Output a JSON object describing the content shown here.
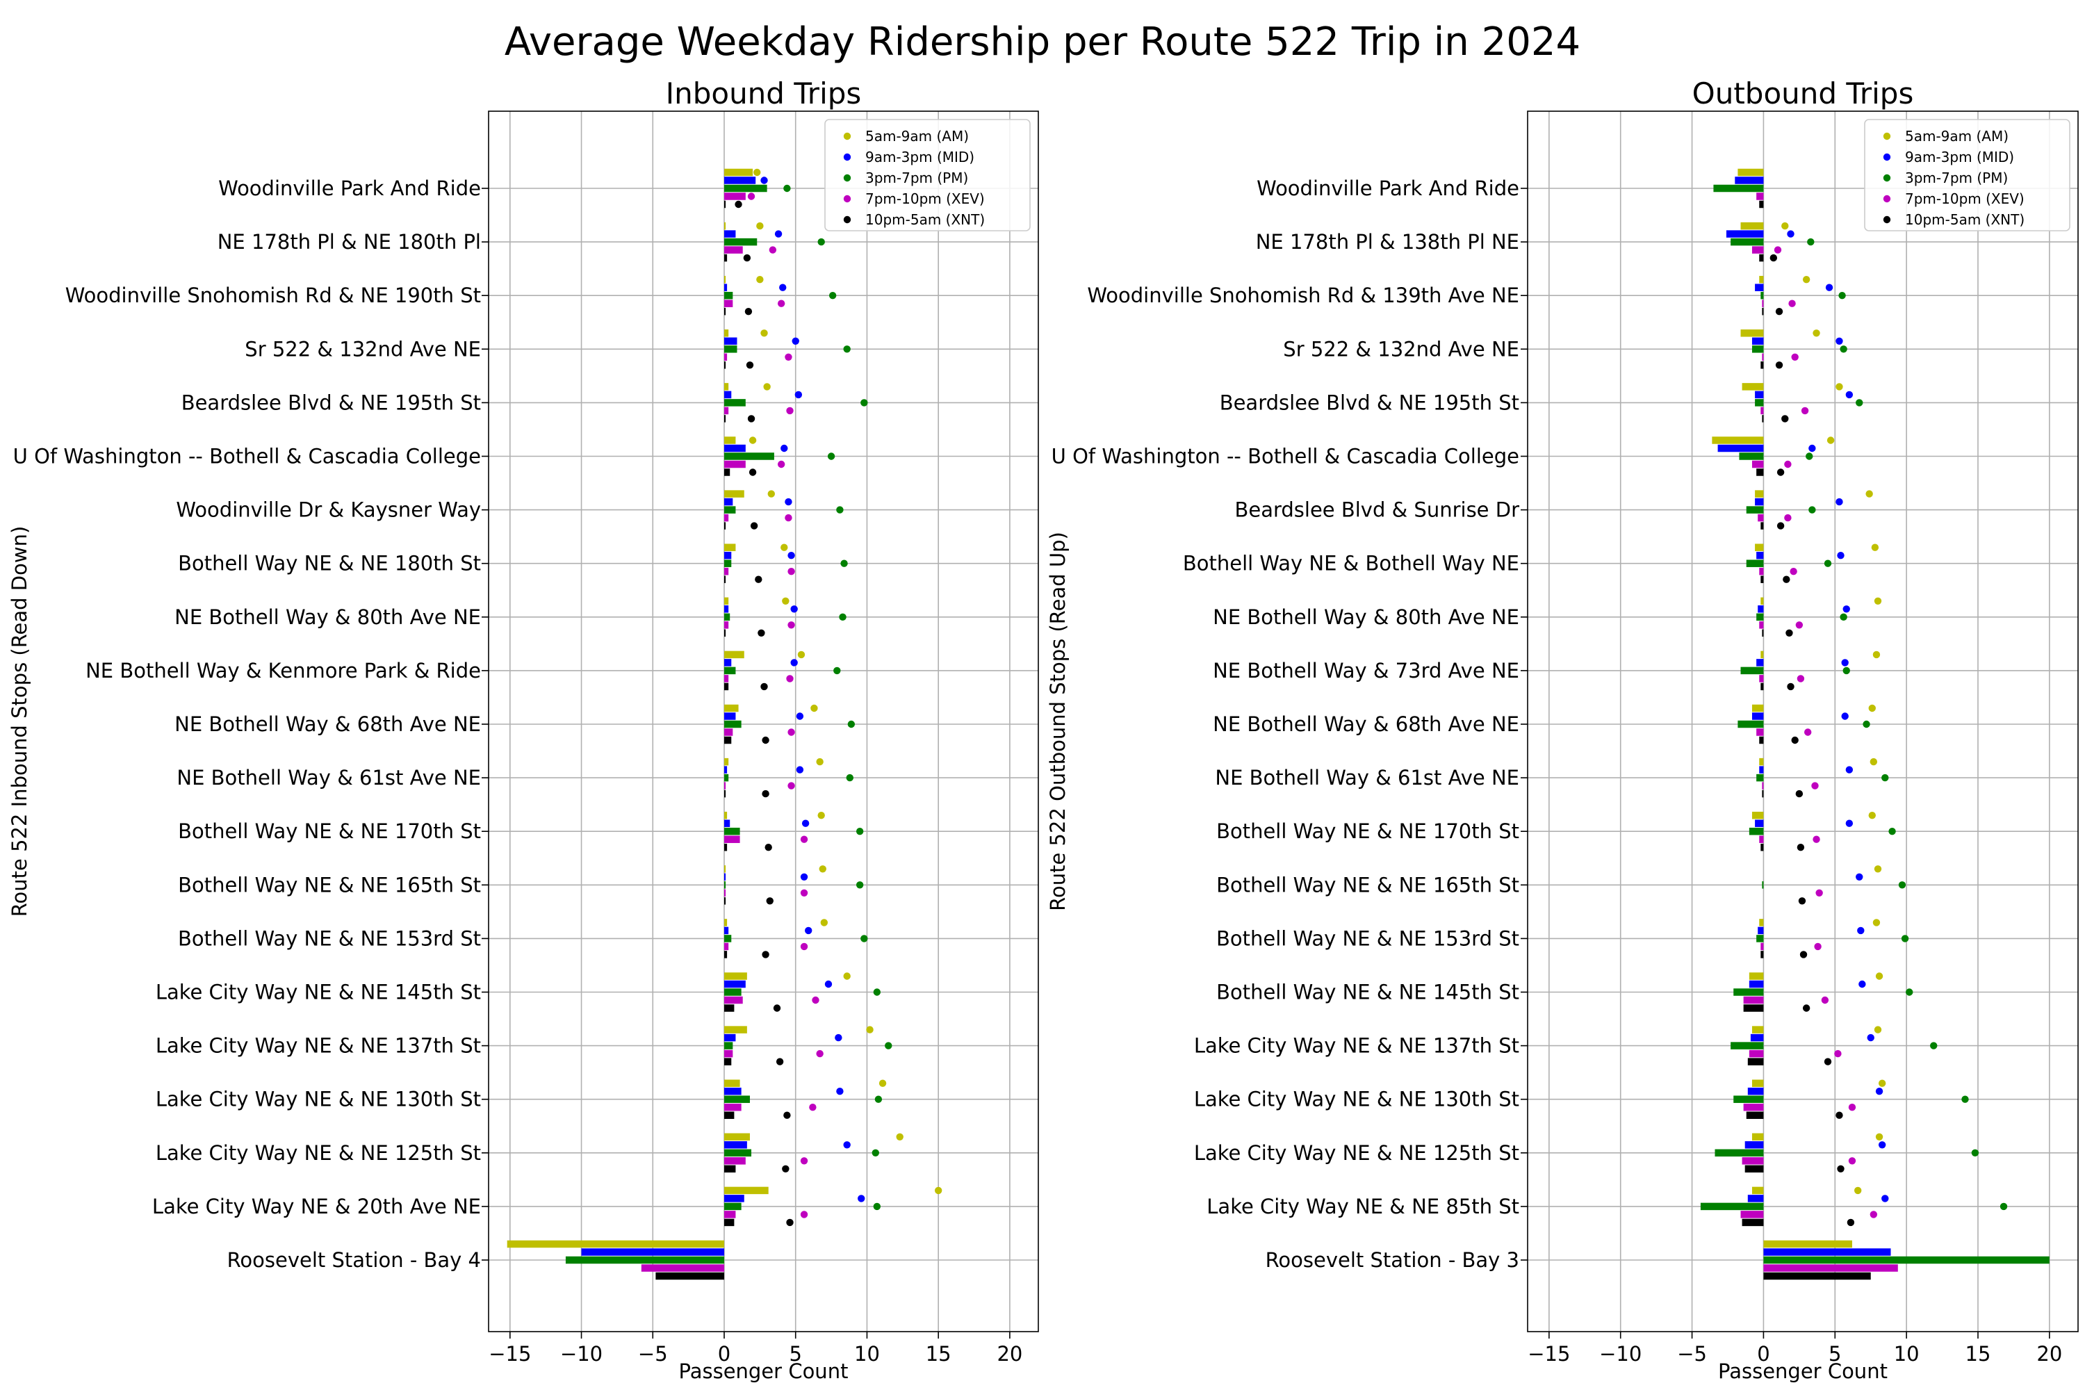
{
  "figure": {
    "title": "Average Weekday Ridership per Route 522 Trip in 2024"
  },
  "colors": {
    "AM": "#bfbf00",
    "MID": "#0000ff",
    "PM": "#008000",
    "XEV": "#bf00bf",
    "XNT": "#000000"
  },
  "chart_data": [
    {
      "type": "bar+scatter",
      "title": "Inbound Trips",
      "xlabel": "Passenger Count",
      "ylabel": "Route 522 Inbound Stops (Read Down)",
      "xlim": [
        -16.5,
        22
      ],
      "xticks": [
        -15,
        -10,
        -5,
        0,
        5,
        10,
        15,
        20
      ],
      "grid": true,
      "legend_position": "top-right",
      "series_names": [
        "5am-9am (AM)",
        "9am-3pm (MID)",
        "3pm-7pm (PM)",
        "7pm-10pm (XEV)",
        "10pm-5am (XNT)"
      ],
      "series_keys": [
        "AM",
        "MID",
        "PM",
        "XEV",
        "XNT"
      ],
      "stops": [
        {
          "name": "Woodinville Park And Ride",
          "bars": [
            2.0,
            2.2,
            3.0,
            1.5,
            0.1
          ],
          "points": [
            2.3,
            2.8,
            4.4,
            1.9,
            1.0
          ]
        },
        {
          "name": "NE 178th Pl & NE 180th Pl",
          "bars": [
            0.1,
            0.8,
            2.3,
            1.3,
            0.2
          ],
          "points": [
            2.5,
            3.8,
            6.8,
            3.4,
            1.6
          ]
        },
        {
          "name": "Woodinville Snohomish Rd & NE 190th St",
          "bars": [
            0.1,
            0.2,
            0.6,
            0.6,
            0.1
          ],
          "points": [
            2.5,
            4.1,
            7.6,
            4.0,
            1.7
          ]
        },
        {
          "name": "Sr 522 & 132nd Ave NE",
          "bars": [
            0.3,
            0.9,
            0.9,
            0.2,
            0.1
          ],
          "points": [
            2.8,
            5.0,
            8.6,
            4.5,
            1.8
          ]
        },
        {
          "name": "Beardslee Blvd & NE 195th St",
          "bars": [
            0.3,
            0.5,
            1.5,
            0.3,
            0.1
          ],
          "points": [
            3.0,
            5.2,
            9.8,
            4.6,
            1.9
          ]
        },
        {
          "name": "U Of Washington -- Bothell & Cascadia College",
          "bars": [
            0.8,
            1.5,
            3.5,
            1.5,
            0.4
          ],
          "points": [
            2.0,
            4.2,
            7.5,
            4.0,
            2.0
          ]
        },
        {
          "name": "Woodinville Dr & Kaysner Way",
          "bars": [
            1.4,
            0.6,
            0.8,
            0.3,
            0.1
          ],
          "points": [
            3.3,
            4.5,
            8.1,
            4.5,
            2.1
          ]
        },
        {
          "name": "Bothell Way NE & NE 180th St",
          "bars": [
            0.8,
            0.5,
            0.5,
            0.3,
            0.1
          ],
          "points": [
            4.2,
            4.7,
            8.4,
            4.7,
            2.4
          ]
        },
        {
          "name": "NE Bothell Way & 80th Ave NE",
          "bars": [
            0.3,
            0.3,
            0.4,
            0.3,
            0.1
          ],
          "points": [
            4.3,
            4.9,
            8.3,
            4.7,
            2.6
          ]
        },
        {
          "name": "NE Bothell Way & Kenmore Park & Ride",
          "bars": [
            1.4,
            0.5,
            0.8,
            0.3,
            0.3
          ],
          "points": [
            5.4,
            4.9,
            7.9,
            4.6,
            2.8
          ]
        },
        {
          "name": "NE Bothell Way & 68th Ave NE",
          "bars": [
            1.0,
            0.8,
            1.2,
            0.6,
            0.5
          ],
          "points": [
            6.3,
            5.3,
            8.9,
            4.7,
            2.9
          ]
        },
        {
          "name": "NE Bothell Way & 61st Ave NE",
          "bars": [
            0.3,
            0.2,
            0.3,
            0.1,
            0.1
          ],
          "points": [
            6.7,
            5.3,
            8.8,
            4.7,
            2.9
          ]
        },
        {
          "name": "Bothell Way NE & NE 170th St",
          "bars": [
            0.2,
            0.4,
            1.1,
            1.1,
            0.2
          ],
          "points": [
            6.8,
            5.7,
            9.5,
            5.6,
            3.1
          ]
        },
        {
          "name": "Bothell Way NE & NE 165th St",
          "bars": [
            0.1,
            0.1,
            0.1,
            0.1,
            0.1
          ],
          "points": [
            6.9,
            5.6,
            9.5,
            5.6,
            3.2
          ]
        },
        {
          "name": "Bothell Way NE & NE 153rd St",
          "bars": [
            0.2,
            0.3,
            0.5,
            0.3,
            0.2
          ],
          "points": [
            7.0,
            5.9,
            9.8,
            5.6,
            2.9
          ]
        },
        {
          "name": "Lake City Way NE & NE 145th St",
          "bars": [
            1.6,
            1.5,
            1.2,
            1.3,
            0.7
          ],
          "points": [
            8.6,
            7.3,
            10.7,
            6.4,
            3.7
          ]
        },
        {
          "name": "Lake City Way NE & NE 137th St",
          "bars": [
            1.6,
            0.8,
            0.6,
            0.6,
            0.5
          ],
          "points": [
            10.2,
            8.0,
            11.5,
            6.7,
            3.9
          ]
        },
        {
          "name": "Lake City Way NE & NE 130th St",
          "bars": [
            1.1,
            1.2,
            1.8,
            1.2,
            0.7
          ],
          "points": [
            11.1,
            8.1,
            10.8,
            6.2,
            4.4
          ]
        },
        {
          "name": "Lake City Way NE & NE 125th St",
          "bars": [
            1.8,
            1.6,
            1.9,
            1.5,
            0.8
          ],
          "points": [
            12.3,
            8.6,
            10.6,
            5.6,
            4.3
          ]
        },
        {
          "name": "Lake City Way NE & 20th Ave NE",
          "bars": [
            3.1,
            1.4,
            1.2,
            0.8,
            0.7
          ],
          "points": [
            15.0,
            9.6,
            10.7,
            5.6,
            4.6
          ]
        },
        {
          "name": "Roosevelt Station - Bay 4",
          "bars": [
            -15.2,
            -10.0,
            -11.1,
            -5.8,
            -4.8
          ],
          "points": [
            null,
            null,
            null,
            null,
            null
          ]
        }
      ]
    },
    {
      "type": "bar+scatter",
      "title": "Outbound Trips",
      "xlabel": "Passenger Count",
      "ylabel": "Route 522 Outbound Stops (Read Up)",
      "xlim": [
        -16.5,
        22
      ],
      "xticks": [
        -15,
        -10,
        -5,
        0,
        5,
        10,
        15,
        20
      ],
      "grid": true,
      "legend_position": "top-right",
      "series_names": [
        "5am-9am (AM)",
        "9am-3pm (MID)",
        "3pm-7pm (PM)",
        "7pm-10pm (XEV)",
        "10pm-5am (XNT)"
      ],
      "series_keys": [
        "AM",
        "MID",
        "PM",
        "XEV",
        "XNT"
      ],
      "stops": [
        {
          "name": "Woodinville Park And Ride",
          "bars": [
            -1.8,
            -2.0,
            -3.5,
            -0.5,
            -0.3
          ],
          "points": [
            null,
            null,
            null,
            null,
            null
          ]
        },
        {
          "name": "NE 178th Pl & 138th Pl NE",
          "bars": [
            -1.6,
            -2.6,
            -2.3,
            -0.8,
            -0.3
          ],
          "points": [
            1.5,
            1.9,
            3.3,
            1.0,
            0.7
          ]
        },
        {
          "name": "Woodinville Snohomish Rd & 139th Ave NE",
          "bars": [
            -0.3,
            -0.6,
            -0.2,
            -0.1,
            -0.1
          ],
          "points": [
            3.0,
            4.6,
            5.5,
            2.0,
            1.1
          ]
        },
        {
          "name": "Sr 522 & 132nd Ave NE",
          "bars": [
            -1.6,
            -0.8,
            -0.8,
            -0.1,
            -0.2
          ],
          "points": [
            3.7,
            5.3,
            5.6,
            2.2,
            1.1
          ]
        },
        {
          "name": "Beardslee Blvd & NE 195th St",
          "bars": [
            -1.5,
            -0.6,
            -0.6,
            -0.2,
            -0.1
          ],
          "points": [
            5.3,
            6.0,
            6.7,
            2.9,
            1.5
          ]
        },
        {
          "name": "U Of Washington -- Bothell & Cascadia College",
          "bars": [
            -3.6,
            -3.2,
            -1.7,
            -0.8,
            -0.5
          ],
          "points": [
            4.7,
            3.4,
            3.2,
            1.7,
            1.2
          ]
        },
        {
          "name": "Beardslee Blvd & Sunrise Dr",
          "bars": [
            -0.6,
            -0.6,
            -1.2,
            -0.4,
            -0.2
          ],
          "points": [
            7.4,
            5.3,
            3.4,
            1.7,
            1.2
          ]
        },
        {
          "name": "Bothell Way NE & Bothell Way NE",
          "bars": [
            -0.6,
            -0.5,
            -1.2,
            -0.3,
            -0.2
          ],
          "points": [
            7.8,
            5.4,
            4.5,
            2.1,
            1.6
          ]
        },
        {
          "name": "NE Bothell Way & 80th Ave NE",
          "bars": [
            -0.2,
            -0.4,
            -0.5,
            -0.3,
            -0.1
          ],
          "points": [
            8.0,
            5.8,
            5.6,
            2.5,
            1.8
          ]
        },
        {
          "name": "NE Bothell Way & 73rd Ave NE",
          "bars": [
            -0.2,
            -0.5,
            -1.6,
            -0.3,
            -0.2
          ],
          "points": [
            7.9,
            5.7,
            5.8,
            2.6,
            1.9
          ]
        },
        {
          "name": "NE Bothell Way & 68th Ave NE",
          "bars": [
            -0.8,
            -0.8,
            -1.8,
            -0.5,
            -0.3
          ],
          "points": [
            7.6,
            5.7,
            7.2,
            3.1,
            2.2
          ]
        },
        {
          "name": "NE Bothell Way & 61st Ave NE",
          "bars": [
            -0.3,
            -0.3,
            -0.5,
            -0.1,
            -0.1
          ],
          "points": [
            7.7,
            6.0,
            8.5,
            3.6,
            2.5
          ]
        },
        {
          "name": "Bothell Way NE & NE 170th St",
          "bars": [
            -0.8,
            -0.6,
            -1.0,
            -0.3,
            -0.2
          ],
          "points": [
            7.6,
            6.0,
            9.0,
            3.7,
            2.6
          ]
        },
        {
          "name": "Bothell Way NE & NE 165th St",
          "bars": [
            0.0,
            0.0,
            -0.1,
            0.0,
            0.0
          ],
          "points": [
            8.0,
            6.7,
            9.7,
            3.9,
            2.7
          ]
        },
        {
          "name": "Bothell Way NE & NE 153rd St",
          "bars": [
            -0.3,
            -0.4,
            -0.5,
            -0.2,
            -0.2
          ],
          "points": [
            7.9,
            6.8,
            9.9,
            3.8,
            2.8
          ]
        },
        {
          "name": "Bothell Way NE & NE 145th St",
          "bars": [
            -1.0,
            -1.0,
            -2.1,
            -1.4,
            -1.4
          ],
          "points": [
            8.1,
            6.9,
            10.2,
            4.3,
            3.0
          ]
        },
        {
          "name": "Lake City Way NE & NE 137th St",
          "bars": [
            -0.8,
            -0.9,
            -2.3,
            -1.0,
            -1.1
          ],
          "points": [
            8.0,
            7.5,
            11.9,
            5.2,
            4.5
          ]
        },
        {
          "name": "Lake City Way NE & NE 130th St",
          "bars": [
            -0.8,
            -1.1,
            -2.1,
            -1.4,
            -1.2
          ],
          "points": [
            8.3,
            8.1,
            14.1,
            6.2,
            5.3
          ]
        },
        {
          "name": "Lake City Way NE & NE 125th St",
          "bars": [
            -0.8,
            -1.3,
            -3.4,
            -1.5,
            -1.3
          ],
          "points": [
            8.1,
            8.3,
            14.8,
            6.2,
            5.4
          ]
        },
        {
          "name": "Lake City Way NE & NE 85th St",
          "bars": [
            -0.8,
            -1.1,
            -4.4,
            -1.6,
            -1.5
          ],
          "points": [
            6.6,
            8.5,
            16.8,
            7.7,
            6.1
          ]
        },
        {
          "name": "Roosevelt Station - Bay 3",
          "bars": [
            6.2,
            8.9,
            20.0,
            9.4,
            7.5
          ],
          "points": [
            null,
            null,
            null,
            null,
            null
          ]
        }
      ]
    }
  ]
}
